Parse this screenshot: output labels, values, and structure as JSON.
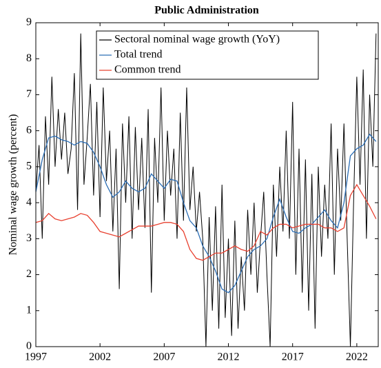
{
  "chart_data": {
    "type": "line",
    "title": "Public Administration",
    "ylabel": "Nominal wage growth (percent)",
    "xlim": [
      1997,
      2023.67
    ],
    "ylim": [
      0,
      9
    ],
    "xticks": [
      1997,
      2002,
      2007,
      2012,
      2017,
      2022
    ],
    "yticks": [
      0,
      1,
      2,
      3,
      4,
      5,
      6,
      7,
      8,
      9
    ],
    "legend": "top",
    "series": [
      {
        "name": "Sectoral nominal wage growth (YoY)",
        "color": "#000000",
        "x": [
          1997,
          1997.25,
          1997.5,
          1997.75,
          1998,
          1998.25,
          1998.5,
          1998.75,
          1999,
          1999.25,
          1999.5,
          1999.75,
          2000,
          2000.25,
          2000.5,
          2000.75,
          2001,
          2001.25,
          2001.5,
          2001.75,
          2002,
          2002.25,
          2002.5,
          2002.75,
          2003,
          2003.25,
          2003.5,
          2003.75,
          2004,
          2004.25,
          2004.5,
          2004.75,
          2005,
          2005.25,
          2005.5,
          2005.75,
          2006,
          2006.25,
          2006.5,
          2006.75,
          2007,
          2007.25,
          2007.5,
          2007.75,
          2008,
          2008.25,
          2008.5,
          2008.75,
          2009,
          2009.25,
          2009.5,
          2009.75,
          2010,
          2010.25,
          2010.5,
          2010.75,
          2011,
          2011.25,
          2011.5,
          2011.75,
          2012,
          2012.25,
          2012.5,
          2012.75,
          2013,
          2013.25,
          2013.5,
          2013.75,
          2014,
          2014.25,
          2014.5,
          2014.75,
          2015,
          2015.25,
          2015.5,
          2015.75,
          2016,
          2016.25,
          2016.5,
          2016.75,
          2017,
          2017.25,
          2017.5,
          2017.75,
          2018,
          2018.25,
          2018.5,
          2018.75,
          2019,
          2019.25,
          2019.5,
          2019.75,
          2020,
          2020.25,
          2020.5,
          2020.75,
          2021,
          2021.25,
          2021.5,
          2021.75,
          2022,
          2022.25,
          2022.5,
          2022.75,
          2023,
          2023.25,
          2023.5
        ],
        "values": [
          4.3,
          5.6,
          3.0,
          6.4,
          4.5,
          7.5,
          5.0,
          6.6,
          5.2,
          6.5,
          4.8,
          5.5,
          7.6,
          3.8,
          8.7,
          4.5,
          5.8,
          7.3,
          4.2,
          6.8,
          3.6,
          7.2,
          4.6,
          6.0,
          3.2,
          5.5,
          1.6,
          6.2,
          4.0,
          6.4,
          3.0,
          6.1,
          3.8,
          5.8,
          3.3,
          6.6,
          1.5,
          5.8,
          4.0,
          7.2,
          3.5,
          6.0,
          4.2,
          5.5,
          3.0,
          6.5,
          3.5,
          7.2,
          3.8,
          5.0,
          3.2,
          4.3,
          3.0,
          0.0,
          3.6,
          1.0,
          3.9,
          0.5,
          4.5,
          0.8,
          3.0,
          0.3,
          3.5,
          0.5,
          2.5,
          1.0,
          3.8,
          2.0,
          4.0,
          1.5,
          3.0,
          4.3,
          2.0,
          0.0,
          4.5,
          2.5,
          5.0,
          3.2,
          6.0,
          3.0,
          6.8,
          2.0,
          5.5,
          1.5,
          5.2,
          1.0,
          4.8,
          0.5,
          5.0,
          2.5,
          4.5,
          3.0,
          6.2,
          2.0,
          5.5,
          3.5,
          6.2,
          3.0,
          0.0,
          4.0,
          7.5,
          4.5,
          7.7,
          3.0,
          7.0,
          5.0,
          8.7
        ]
      },
      {
        "name": "Total trend",
        "color": "#2a6db5",
        "x": [
          1997,
          1997.5,
          1998,
          1998.5,
          1999,
          1999.5,
          2000,
          2000.5,
          2001,
          2001.5,
          2002,
          2002.5,
          2003,
          2003.5,
          2004,
          2004.5,
          2005,
          2005.5,
          2006,
          2006.5,
          2007,
          2007.5,
          2008,
          2008.5,
          2009,
          2009.5,
          2010,
          2010.5,
          2011,
          2011.5,
          2012,
          2012.5,
          2013,
          2013.5,
          2014,
          2014.5,
          2015,
          2015.5,
          2016,
          2016.5,
          2017,
          2017.5,
          2018,
          2018.5,
          2019,
          2019.5,
          2020,
          2020.5,
          2021,
          2021.5,
          2022,
          2022.5,
          2023,
          2023.5
        ],
        "values": [
          4.3,
          5.2,
          5.8,
          5.85,
          5.75,
          5.7,
          5.6,
          5.7,
          5.65,
          5.4,
          5.0,
          4.5,
          4.15,
          4.3,
          4.6,
          4.4,
          4.3,
          4.4,
          4.8,
          4.6,
          4.4,
          4.65,
          4.6,
          4.0,
          3.5,
          3.3,
          2.8,
          2.5,
          2.1,
          1.6,
          1.5,
          1.7,
          2.1,
          2.5,
          2.7,
          2.8,
          3.0,
          3.6,
          4.1,
          3.6,
          3.2,
          3.15,
          3.3,
          3.4,
          3.6,
          3.8,
          3.5,
          3.3,
          4.0,
          5.3,
          5.5,
          5.6,
          5.9,
          5.7
        ]
      },
      {
        "name": "Common trend",
        "color": "#e8402f",
        "x": [
          1997,
          1997.5,
          1998,
          1998.5,
          1999,
          1999.5,
          2000,
          2000.5,
          2001,
          2001.5,
          2002,
          2002.5,
          2003,
          2003.5,
          2004,
          2004.5,
          2005,
          2005.5,
          2006,
          2006.5,
          2007,
          2007.5,
          2008,
          2008.5,
          2009,
          2009.5,
          2010,
          2010.5,
          2011,
          2011.5,
          2012,
          2012.5,
          2013,
          2013.5,
          2014,
          2014.5,
          2015,
          2015.5,
          2016,
          2016.5,
          2017,
          2017.5,
          2018,
          2018.5,
          2019,
          2019.5,
          2020,
          2020.5,
          2021,
          2021.5,
          2022,
          2022.5,
          2023,
          2023.5
        ],
        "values": [
          3.45,
          3.5,
          3.7,
          3.55,
          3.5,
          3.55,
          3.6,
          3.7,
          3.65,
          3.45,
          3.2,
          3.15,
          3.1,
          3.05,
          3.15,
          3.25,
          3.35,
          3.35,
          3.35,
          3.4,
          3.45,
          3.45,
          3.4,
          3.2,
          2.7,
          2.45,
          2.4,
          2.5,
          2.6,
          2.6,
          2.7,
          2.8,
          2.7,
          2.65,
          2.8,
          3.2,
          3.1,
          3.3,
          3.4,
          3.4,
          3.3,
          3.35,
          3.4,
          3.4,
          3.4,
          3.3,
          3.3,
          3.2,
          3.3,
          4.2,
          4.5,
          4.2,
          3.9,
          3.55
        ]
      }
    ]
  }
}
